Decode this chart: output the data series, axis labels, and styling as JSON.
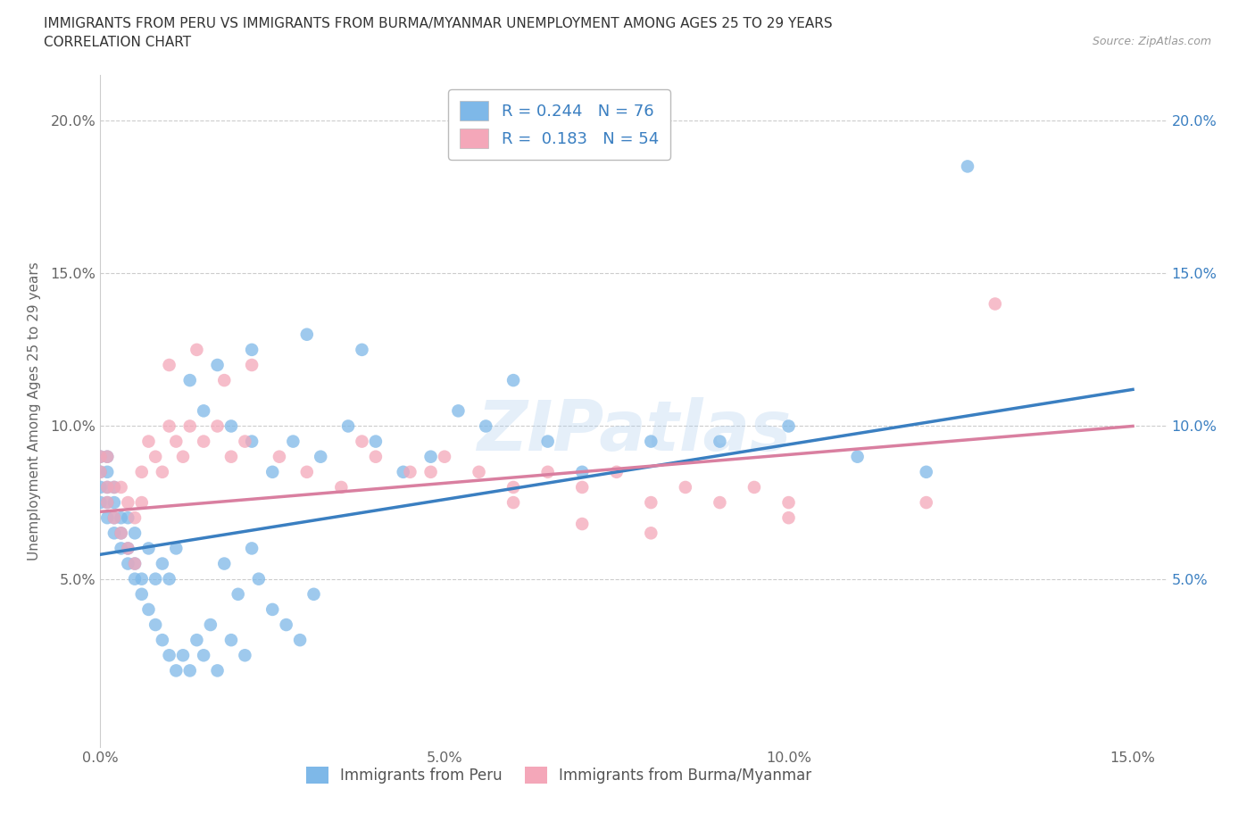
{
  "title_line1": "IMMIGRANTS FROM PERU VS IMMIGRANTS FROM BURMA/MYANMAR UNEMPLOYMENT AMONG AGES 25 TO 29 YEARS",
  "title_line2": "CORRELATION CHART",
  "source_text": "Source: ZipAtlas.com",
  "ylabel": "Unemployment Among Ages 25 to 29 years",
  "xlim": [
    0.0,
    0.155
  ],
  "ylim": [
    -0.005,
    0.215
  ],
  "xtick_labels": [
    "0.0%",
    "5.0%",
    "10.0%",
    "15.0%"
  ],
  "xtick_vals": [
    0.0,
    0.05,
    0.1,
    0.15
  ],
  "ytick_labels": [
    "5.0%",
    "10.0%",
    "15.0%",
    "20.0%"
  ],
  "ytick_vals": [
    0.05,
    0.1,
    0.15,
    0.2
  ],
  "peru_color": "#7eb8e8",
  "burma_color": "#f4a7b9",
  "peru_line_color": "#3a7fc1",
  "burma_line_color": "#d97fa0",
  "peru_R": 0.244,
  "peru_N": 76,
  "burma_R": 0.183,
  "burma_N": 54,
  "legend_peru": "Immigrants from Peru",
  "legend_burma": "Immigrants from Burma/Myanmar",
  "peru_x": [
    0.0,
    0.0,
    0.0,
    0.0,
    0.001,
    0.001,
    0.001,
    0.001,
    0.001,
    0.002,
    0.002,
    0.002,
    0.002,
    0.003,
    0.003,
    0.003,
    0.004,
    0.004,
    0.004,
    0.005,
    0.005,
    0.005,
    0.006,
    0.006,
    0.007,
    0.007,
    0.008,
    0.008,
    0.009,
    0.009,
    0.01,
    0.01,
    0.011,
    0.011,
    0.012,
    0.013,
    0.014,
    0.015,
    0.016,
    0.017,
    0.018,
    0.019,
    0.02,
    0.021,
    0.022,
    0.023,
    0.025,
    0.027,
    0.029,
    0.031,
    0.013,
    0.015,
    0.017,
    0.019,
    0.022,
    0.025,
    0.028,
    0.032,
    0.036,
    0.04,
    0.044,
    0.048,
    0.052,
    0.056,
    0.06,
    0.065,
    0.07,
    0.08,
    0.09,
    0.1,
    0.11,
    0.12,
    0.022,
    0.03,
    0.038,
    0.126
  ],
  "peru_y": [
    0.075,
    0.08,
    0.085,
    0.09,
    0.07,
    0.075,
    0.08,
    0.085,
    0.09,
    0.065,
    0.07,
    0.075,
    0.08,
    0.06,
    0.065,
    0.07,
    0.055,
    0.06,
    0.07,
    0.05,
    0.055,
    0.065,
    0.045,
    0.05,
    0.04,
    0.06,
    0.035,
    0.05,
    0.03,
    0.055,
    0.025,
    0.05,
    0.02,
    0.06,
    0.025,
    0.02,
    0.03,
    0.025,
    0.035,
    0.02,
    0.055,
    0.03,
    0.045,
    0.025,
    0.06,
    0.05,
    0.04,
    0.035,
    0.03,
    0.045,
    0.115,
    0.105,
    0.12,
    0.1,
    0.095,
    0.085,
    0.095,
    0.09,
    0.1,
    0.095,
    0.085,
    0.09,
    0.105,
    0.1,
    0.115,
    0.095,
    0.085,
    0.095,
    0.095,
    0.1,
    0.09,
    0.085,
    0.125,
    0.13,
    0.125,
    0.185
  ],
  "burma_x": [
    0.0,
    0.0,
    0.001,
    0.001,
    0.001,
    0.002,
    0.002,
    0.003,
    0.003,
    0.004,
    0.004,
    0.005,
    0.005,
    0.006,
    0.006,
    0.007,
    0.008,
    0.009,
    0.01,
    0.011,
    0.012,
    0.013,
    0.015,
    0.017,
    0.019,
    0.021,
    0.01,
    0.014,
    0.018,
    0.022,
    0.026,
    0.03,
    0.035,
    0.04,
    0.045,
    0.05,
    0.055,
    0.06,
    0.065,
    0.07,
    0.075,
    0.08,
    0.085,
    0.09,
    0.095,
    0.1,
    0.038,
    0.048,
    0.06,
    0.07,
    0.08,
    0.1,
    0.12,
    0.13
  ],
  "burma_y": [
    0.085,
    0.09,
    0.075,
    0.08,
    0.09,
    0.07,
    0.08,
    0.065,
    0.08,
    0.06,
    0.075,
    0.055,
    0.07,
    0.075,
    0.085,
    0.095,
    0.09,
    0.085,
    0.1,
    0.095,
    0.09,
    0.1,
    0.095,
    0.1,
    0.09,
    0.095,
    0.12,
    0.125,
    0.115,
    0.12,
    0.09,
    0.085,
    0.08,
    0.09,
    0.085,
    0.09,
    0.085,
    0.08,
    0.085,
    0.08,
    0.085,
    0.075,
    0.08,
    0.075,
    0.08,
    0.075,
    0.095,
    0.085,
    0.075,
    0.068,
    0.065,
    0.07,
    0.075,
    0.14
  ],
  "peru_trend_x0": 0.0,
  "peru_trend_y0": 0.058,
  "peru_trend_x1": 0.15,
  "peru_trend_y1": 0.112,
  "burma_trend_x0": 0.0,
  "burma_trend_y0": 0.072,
  "burma_trend_x1": 0.15,
  "burma_trend_y1": 0.1
}
